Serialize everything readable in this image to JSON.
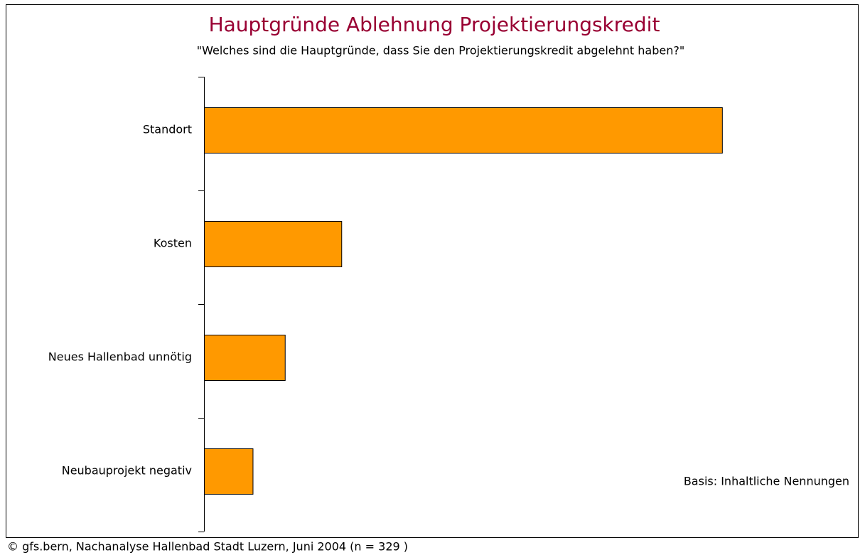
{
  "chart_data": {
    "type": "barh",
    "title": "Hauptgründe Ablehnung Projektierungskredit",
    "subtitle": "\"Welches sind die Hauptgründe, dass Sie den Projektierungskredit abgelehnt haben?\"",
    "categories": [
      "Standort",
      "Kosten",
      "Neues Hallenbad unnötig",
      "Neubauprojekt negativ"
    ],
    "values": [
      66,
      17.5,
      10.3,
      6.2
    ],
    "color": "#ff9900",
    "xlim": [
      0,
      70
    ],
    "annotation": "Basis: Inhaltliche Nennungen",
    "footer": "© gfs.bern, Nachanalyse Hallenbad Stadt Luzern, Juni 2004 (n = 329 )"
  }
}
